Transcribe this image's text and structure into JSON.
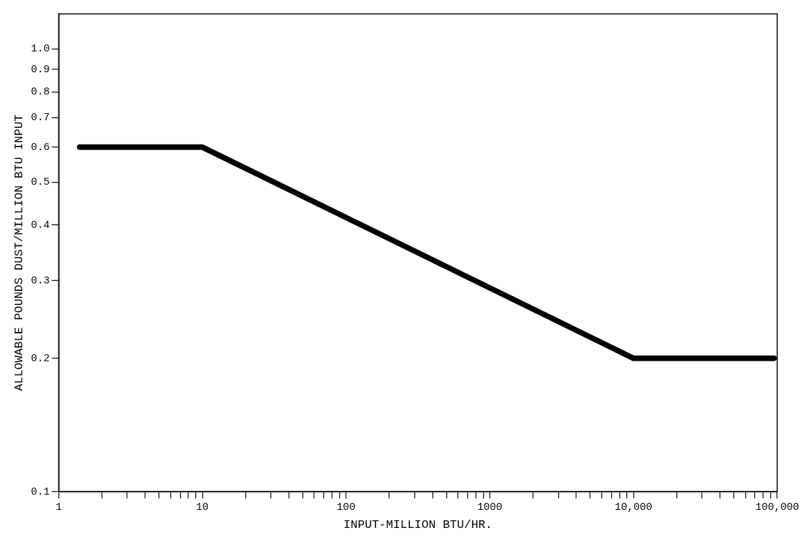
{
  "chart_data": {
    "type": "line",
    "xlabel": "INPUT-MILLION BTU/HR.",
    "ylabel": "ALLOWABLE POUNDS DUST/MILLION BTU INPUT",
    "log": "xy",
    "grid": false,
    "legend": false,
    "marker": "none",
    "line_style": "solid",
    "xlim": [
      1,
      100000
    ],
    "ylim": [
      0.1,
      1.2
    ],
    "xticks": [
      1,
      {
        "value": 2,
        "label": null
      },
      {
        "value": 3,
        "label": null
      },
      {
        "value": 4,
        "label": null
      },
      {
        "value": 5,
        "label": null
      },
      {
        "value": 6,
        "label": null
      },
      {
        "value": 7,
        "label": null
      },
      {
        "value": 8,
        "label": null
      },
      {
        "value": 9,
        "label": null
      },
      10,
      {
        "value": 20,
        "label": null
      },
      {
        "value": 30,
        "label": null
      },
      {
        "value": 40,
        "label": null
      },
      {
        "value": 50,
        "label": null
      },
      {
        "value": 60,
        "label": null
      },
      {
        "value": 70,
        "label": null
      },
      {
        "value": 80,
        "label": null
      },
      {
        "value": 90,
        "label": null
      },
      100,
      {
        "value": 200,
        "label": null
      },
      {
        "value": 300,
        "label": null
      },
      {
        "value": 400,
        "label": null
      },
      {
        "value": 500,
        "label": null
      },
      {
        "value": 600,
        "label": null
      },
      {
        "value": 700,
        "label": null
      },
      {
        "value": 800,
        "label": null
      },
      {
        "value": 900,
        "label": null
      },
      1000,
      {
        "value": 2000,
        "label": null
      },
      {
        "value": 3000,
        "label": null
      },
      {
        "value": 4000,
        "label": null
      },
      {
        "value": 5000,
        "label": null
      },
      {
        "value": 6000,
        "label": null
      },
      {
        "value": 7000,
        "label": null
      },
      {
        "value": 8000,
        "label": null
      },
      {
        "value": 9000,
        "label": null
      },
      {
        "value": 10000,
        "label": "10,000"
      },
      {
        "value": 20000,
        "label": null
      },
      {
        "value": 30000,
        "label": null
      },
      {
        "value": 40000,
        "label": null
      },
      {
        "value": 50000,
        "label": null
      },
      {
        "value": 60000,
        "label": null
      },
      {
        "value": 70000,
        "label": null
      },
      {
        "value": 80000,
        "label": null
      },
      {
        "value": 90000,
        "label": null
      },
      {
        "value": 100000,
        "label": "100,000"
      }
    ],
    "yticks": [
      0.1,
      0.2,
      0.3,
      0.4,
      0.5,
      0.6,
      0.7,
      0.8,
      0.9,
      {
        "value": 1,
        "label": "1.0"
      }
    ],
    "series": [
      {
        "color": "#000000",
        "x": [
          1.4,
          10,
          10000,
          95000
        ],
        "values": [
          0.6,
          0.6,
          0.2,
          0.2
        ]
      }
    ]
  }
}
